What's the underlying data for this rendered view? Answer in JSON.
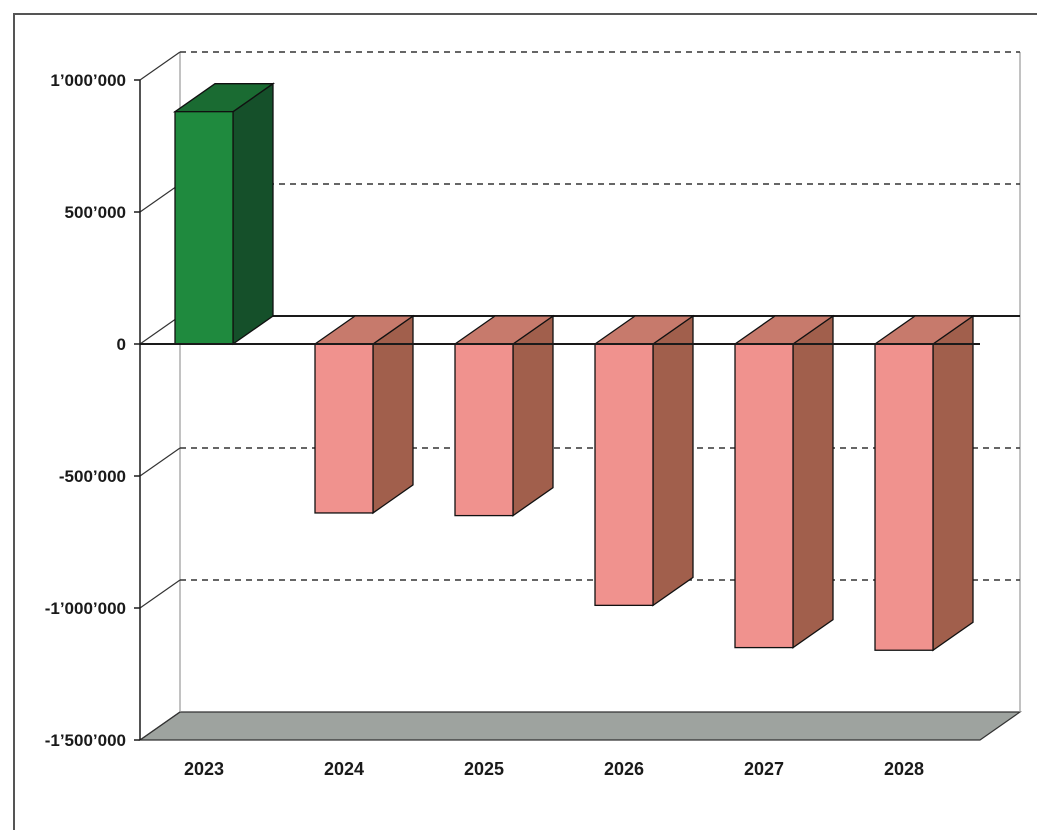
{
  "chart_data": {
    "type": "bar",
    "style": "3d",
    "categories": [
      "2023",
      "2024",
      "2025",
      "2026",
      "2027",
      "2028"
    ],
    "series": [
      {
        "values": [
          880000,
          -640000,
          -650000,
          -990000,
          -1150000,
          -1160000
        ]
      }
    ],
    "ylim": [
      -1500000,
      1000000
    ],
    "yticks": [
      1000000,
      500000,
      0,
      -500000,
      -1000000,
      -1500000
    ],
    "ytick_labels": [
      "1’000’000",
      "500’000",
      "0",
      "-500’000",
      "-1’000’000",
      "-1’500’000"
    ],
    "grid": "dashed",
    "colors": {
      "positive_front": "#1f8a3e",
      "positive_side": "#15502a",
      "positive_top": "#1a6b32",
      "negative_front": "#f0928e",
      "negative_side": "#a15f4c",
      "negative_top": "#c77a6c",
      "floor": "#9ea39f"
    }
  }
}
